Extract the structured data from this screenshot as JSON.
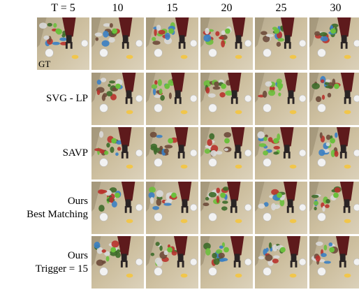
{
  "columns": [
    "T = 5",
    "10",
    "15",
    "20",
    "25",
    "30"
  ],
  "gt_label": "GT",
  "rows": [
    {
      "label_lines": [],
      "frames": 6,
      "ground_truth": true
    },
    {
      "label_lines": [
        "SVG - LP"
      ],
      "frames": 5
    },
    {
      "label_lines": [
        "SAVP"
      ],
      "frames": 5
    },
    {
      "label_lines": [
        "Ours",
        "Best Matching"
      ],
      "frames": 5
    },
    {
      "label_lines": [
        "Ours",
        "Trigger = 15"
      ],
      "frames": 5
    }
  ],
  "colors": {
    "table": "#cdbf9f",
    "table_dark": "#9a8c70",
    "robot_arm": "#5e1a1c",
    "gripper": "#2a2424",
    "green_obj": "#6bbf3c",
    "blue_obj": "#3a7fc4",
    "white_obj": "#f2f2f2",
    "yellow_obj": "#f1c64b",
    "red_obj": "#b8322c"
  }
}
